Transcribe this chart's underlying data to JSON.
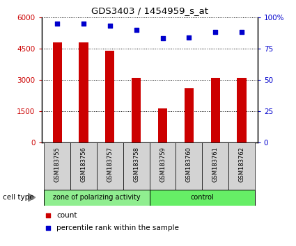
{
  "title": "GDS3403 / 1454959_s_at",
  "samples": [
    "GSM183755",
    "GSM183756",
    "GSM183757",
    "GSM183758",
    "GSM183759",
    "GSM183760",
    "GSM183761",
    "GSM183762"
  ],
  "counts": [
    4800,
    4800,
    4400,
    3100,
    1650,
    2600,
    3100,
    3100
  ],
  "percentiles": [
    95,
    95,
    93,
    90,
    83,
    84,
    88,
    88
  ],
  "bar_color": "#CC0000",
  "dot_color": "#0000CC",
  "ylim_left": [
    0,
    6000
  ],
  "ylim_right": [
    0,
    100
  ],
  "yticks_left": [
    0,
    1500,
    3000,
    4500,
    6000
  ],
  "yticks_right": [
    0,
    25,
    50,
    75,
    100
  ],
  "group_boundary": 4,
  "group1_label": "zone of polarizing activity",
  "group2_label": "control",
  "group1_color": "#90EE90",
  "group2_color": "#66EE66",
  "cell_type_label": "cell type",
  "legend_count_label": "count",
  "legend_pct_label": "percentile rank within the sample",
  "tick_label_bg": "#D3D3D3"
}
